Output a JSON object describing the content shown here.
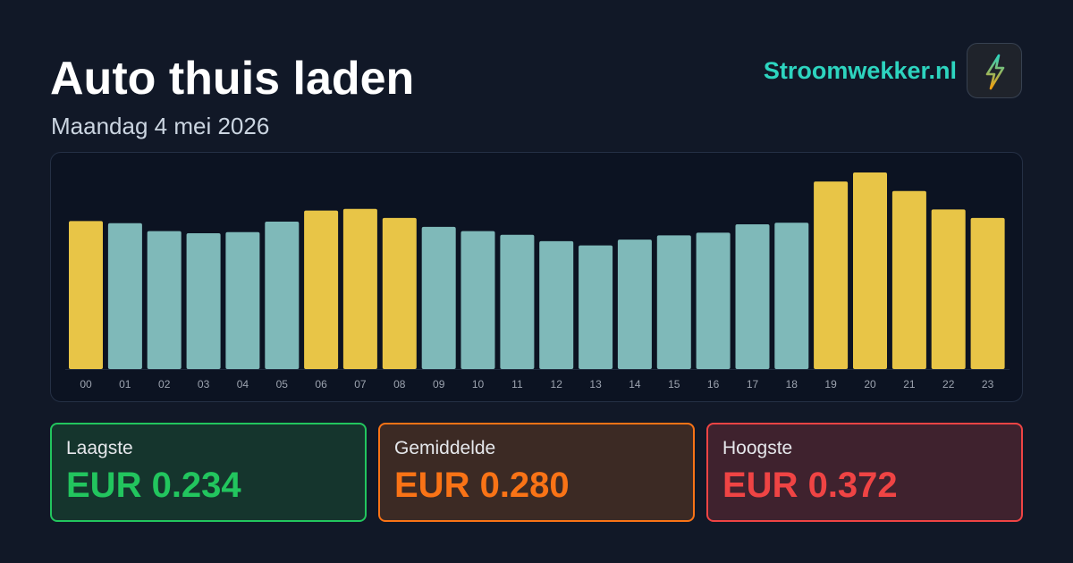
{
  "header": {
    "title": "Auto thuis laden",
    "subtitle": "Maandag 4 mei 2026",
    "brand": "Stroomwekker.nl",
    "logo_icon": "lightning-bolt-icon"
  },
  "colors": {
    "highlight_bar": "#e8c547",
    "normal_bar": "#7fb9b9",
    "brand": "#2dd4bf",
    "low": "#22c55e",
    "avg": "#f97316",
    "high": "#ef4444"
  },
  "chart_data": {
    "type": "bar",
    "title": "",
    "xlabel": "",
    "ylabel": "",
    "categories": [
      "00",
      "01",
      "02",
      "03",
      "04",
      "05",
      "06",
      "07",
      "08",
      "09",
      "10",
      "11",
      "12",
      "13",
      "14",
      "15",
      "16",
      "17",
      "18",
      "19",
      "20",
      "21",
      "22",
      "23"
    ],
    "values": [
      0.28,
      0.276,
      0.261,
      0.257,
      0.259,
      0.279,
      0.3,
      0.303,
      0.286,
      0.269,
      0.261,
      0.254,
      0.242,
      0.234,
      0.245,
      0.253,
      0.258,
      0.274,
      0.277,
      0.355,
      0.372,
      0.337,
      0.302,
      0.286
    ],
    "highlighted": [
      true,
      false,
      false,
      false,
      false,
      false,
      true,
      true,
      true,
      false,
      false,
      false,
      false,
      false,
      false,
      false,
      false,
      false,
      false,
      true,
      true,
      true,
      true,
      true
    ],
    "ylim": [
      0,
      0.372
    ],
    "grid": false,
    "legend": "none"
  },
  "stats": {
    "low": {
      "label": "Laagste",
      "value": "EUR 0.234"
    },
    "avg": {
      "label": "Gemiddelde",
      "value": "EUR 0.280"
    },
    "high": {
      "label": "Hoogste",
      "value": "EUR 0.372"
    }
  }
}
